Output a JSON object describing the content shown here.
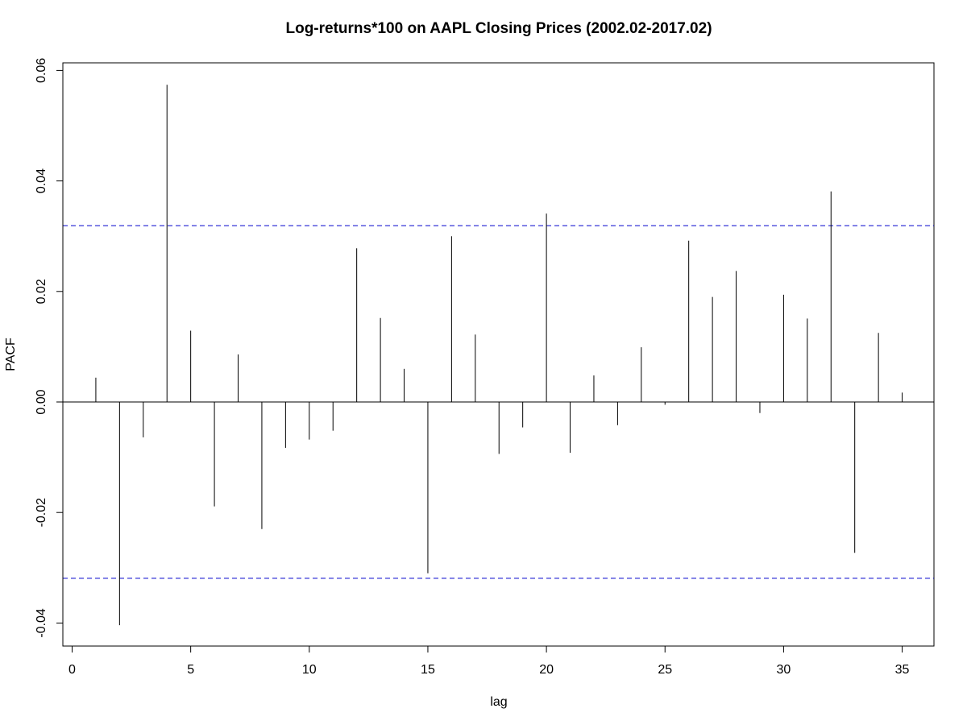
{
  "chart_data": {
    "type": "bar",
    "title": "Log-returns*100 on AAPL Closing Prices (2002.02-2017.02)",
    "xlabel": "lag",
    "ylabel": "PACF",
    "xlim": [
      0,
      35
    ],
    "ylim": [
      -0.04,
      0.06
    ],
    "xticks": [
      "0",
      "5",
      "10",
      "15",
      "20",
      "25",
      "30",
      "35"
    ],
    "yticks": [
      "-0.04",
      "-0.02",
      "0.00",
      "0.02",
      "0.04",
      "0.06"
    ],
    "x": [
      1,
      2,
      3,
      4,
      5,
      6,
      7,
      8,
      9,
      10,
      11,
      12,
      13,
      14,
      15,
      16,
      17,
      18,
      19,
      20,
      21,
      22,
      23,
      24,
      25,
      26,
      27,
      28,
      29,
      30,
      31,
      32,
      33,
      34,
      35
    ],
    "values": [
      0.0044,
      -0.0404,
      -0.0064,
      0.0574,
      0.0129,
      -0.0189,
      0.0086,
      -0.023,
      -0.0083,
      -0.0068,
      -0.0052,
      0.0278,
      0.0152,
      0.006,
      -0.031,
      0.03,
      0.0122,
      -0.0094,
      -0.0046,
      0.0341,
      -0.0092,
      0.0048,
      -0.0042,
      0.0099,
      -0.0005,
      0.0292,
      0.019,
      0.0237,
      -0.002,
      0.0194,
      0.0151,
      0.0381,
      -0.0273,
      0.0125,
      0.0017
    ],
    "confidence_bound": 0.0319,
    "grid": false,
    "colors": {
      "bars": "#000000",
      "bounds": "#0000cc"
    }
  }
}
